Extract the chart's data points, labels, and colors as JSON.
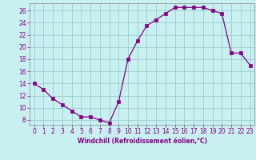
{
  "x": [
    0,
    1,
    2,
    3,
    4,
    5,
    6,
    7,
    8,
    9,
    10,
    11,
    12,
    13,
    14,
    15,
    16,
    17,
    18,
    19,
    20,
    21,
    22,
    23
  ],
  "y": [
    14,
    13,
    11.5,
    10.5,
    9.5,
    8.5,
    8.5,
    8,
    7.5,
    11,
    18,
    21,
    23.5,
    24.5,
    25.5,
    26.5,
    26.5,
    26.5,
    26.5,
    26,
    25.5,
    19,
    19,
    17
  ],
  "line_color": "#880088",
  "marker": "s",
  "marker_size": 2.2,
  "marker_linewidth": 0.5,
  "bg_color": "#c8f0f0",
  "grid_color": "#99cccc",
  "xlabel": "Windchill (Refroidissement éolien,°C)",
  "xlabel_fontsize": 5.5,
  "ylabel_ticks": [
    8,
    10,
    12,
    14,
    16,
    18,
    20,
    22,
    24,
    26
  ],
  "xticks": [
    0,
    1,
    2,
    3,
    4,
    5,
    6,
    7,
    8,
    9,
    10,
    11,
    12,
    13,
    14,
    15,
    16,
    17,
    18,
    19,
    20,
    21,
    22,
    23
  ],
  "xlim": [
    -0.5,
    23.5
  ],
  "ylim": [
    7.2,
    27.2
  ],
  "tick_fontsize": 5.5,
  "tick_color": "#880088",
  "label_color": "#880088",
  "spine_color": "#888888"
}
